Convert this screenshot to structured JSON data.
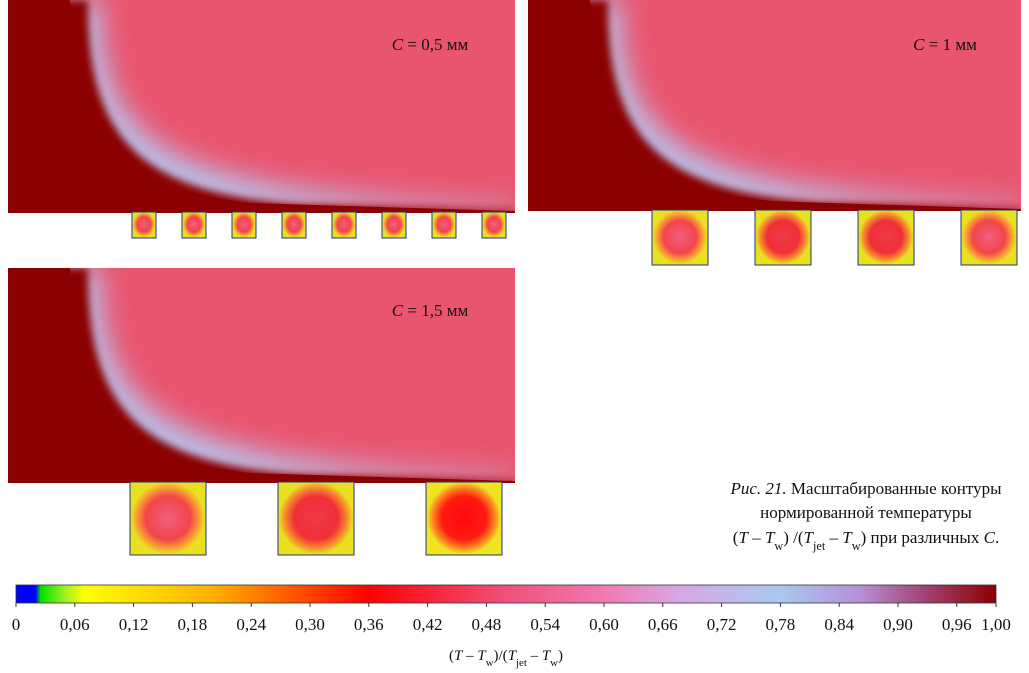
{
  "panels": [
    {
      "symbol": "C",
      "text": " = 0,5 мм"
    },
    {
      "symbol": "C",
      "text": " = 1 мм"
    },
    {
      "symbol": "C",
      "text": " = 1,5 мм"
    }
  ],
  "caption": {
    "fig_label": "Рис. 21.",
    "line1": "Масштабированные контуры",
    "line2": "нормированной температуры",
    "line3": [
      "(",
      "T",
      " – ",
      "T",
      "w",
      ") /(",
      "T",
      "jet",
      " – ",
      "T",
      "w",
      ") при различных ",
      "C",
      "."
    ]
  },
  "colorbar": {
    "lim": [
      0,
      1
    ],
    "ticks": [
      {
        "value": 0,
        "label": "0"
      },
      {
        "value": 0.06,
        "label": "0,06"
      },
      {
        "value": 0.12,
        "label": "0,12"
      },
      {
        "value": 0.18,
        "label": "0,18"
      },
      {
        "value": 0.24,
        "label": "0,24"
      },
      {
        "value": 0.3,
        "label": "0,30"
      },
      {
        "value": 0.36,
        "label": "0,36"
      },
      {
        "value": 0.42,
        "label": "0,42"
      },
      {
        "value": 0.48,
        "label": "0,48"
      },
      {
        "value": 0.54,
        "label": "0,54"
      },
      {
        "value": 0.6,
        "label": "0,60"
      },
      {
        "value": 0.66,
        "label": "0,66"
      },
      {
        "value": 0.72,
        "label": "0,72"
      },
      {
        "value": 0.78,
        "label": "0,78"
      },
      {
        "value": 0.84,
        "label": "0,84"
      },
      {
        "value": 0.9,
        "label": "0,90"
      },
      {
        "value": 0.96,
        "label": "0,96"
      },
      {
        "value": 1.0,
        "label": "1,00"
      }
    ],
    "label": [
      "(",
      "T",
      " – ",
      "T",
      "w",
      ")/(",
      "T",
      "jet",
      " – ",
      "T",
      "w",
      ")"
    ]
  }
}
